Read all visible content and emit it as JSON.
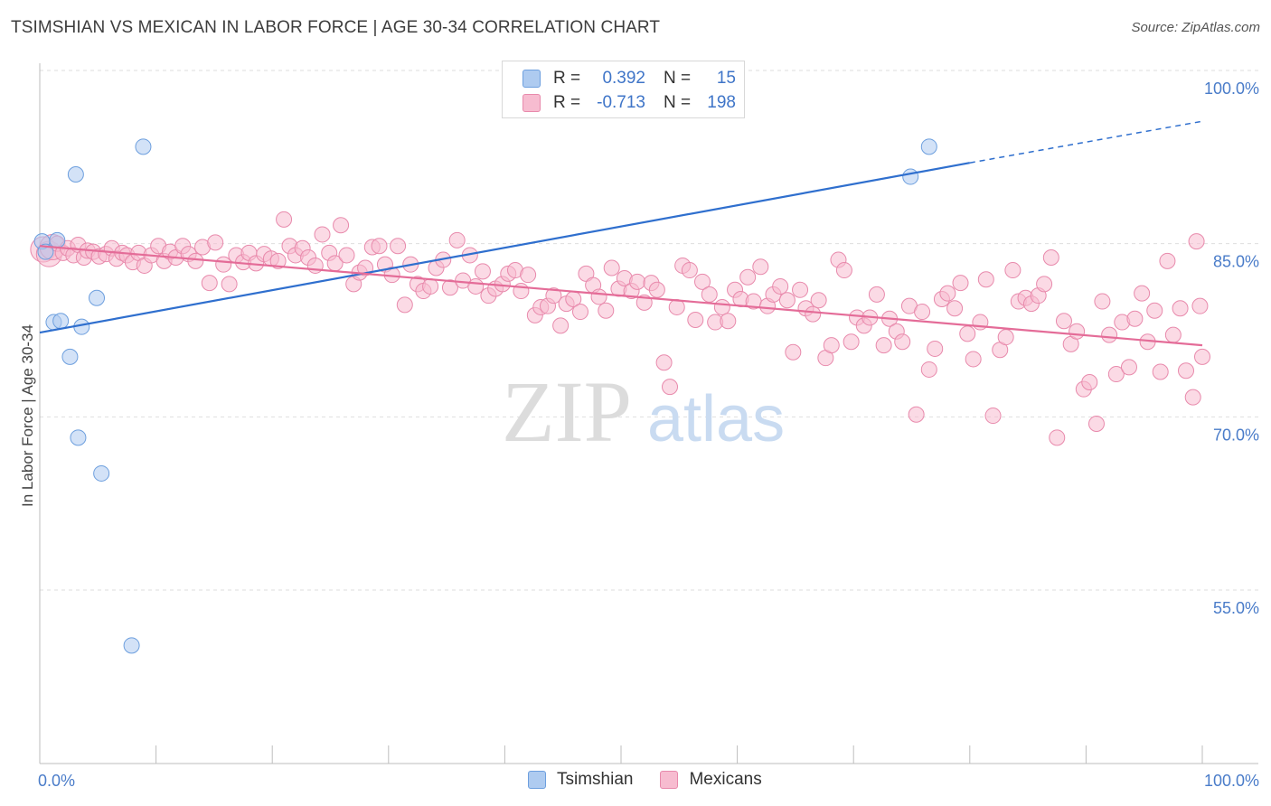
{
  "title": "TSIMSHIAN VS MEXICAN IN LABOR FORCE | AGE 30-34 CORRELATION CHART",
  "source": "Source: ZipAtlas.com",
  "legend": {
    "r_label": "R =",
    "n_label": "N =",
    "rows": [
      {
        "name": "Tsimshian",
        "r": "0.392",
        "n": "15",
        "color": "#aecbf0",
        "stroke": "#6d9fde"
      },
      {
        "name": "Mexicans",
        "r": "-0.713",
        "n": "198",
        "color": "#f7bcd0",
        "stroke": "#e88aac"
      }
    ]
  },
  "watermark": {
    "zip": "ZIP",
    "atlas": "atlas"
  },
  "chart_data": {
    "type": "scatter",
    "ylabel": "In Labor Force | Age 30-34",
    "xlabel": "",
    "xlim": [
      0,
      100
    ],
    "ylim": [
      40,
      102
    ],
    "x_tick_labels": [
      {
        "v": 0,
        "label": "0.0%"
      },
      {
        "v": 100,
        "label": "100.0%"
      }
    ],
    "y_tick_labels": [
      {
        "v": 55,
        "label": "55.0%"
      },
      {
        "v": 70,
        "label": "70.0%"
      },
      {
        "v": 85,
        "label": "85.0%"
      },
      {
        "v": 100,
        "label": "100.0%"
      }
    ],
    "grid": true,
    "series": [
      {
        "name": "Tsimshian",
        "color": "#aecbf0",
        "stroke": "#6d9fde",
        "line_color": "#2f6fce",
        "trend": {
          "x0": 0,
          "y0": 77.3,
          "x1": 80,
          "y1": 92.0,
          "dash_to_x": 100,
          "dash_to_y": 95.6
        },
        "points": [
          [
            0.2,
            85.2
          ],
          [
            0.5,
            84.3
          ],
          [
            1.2,
            78.2
          ],
          [
            1.5,
            85.3
          ],
          [
            1.8,
            78.3
          ],
          [
            2.6,
            75.2
          ],
          [
            3.1,
            91.0
          ],
          [
            3.3,
            68.2
          ],
          [
            3.6,
            77.8
          ],
          [
            4.9,
            80.3
          ],
          [
            5.3,
            65.1
          ],
          [
            7.9,
            50.2
          ],
          [
            8.9,
            93.4
          ],
          [
            74.9,
            90.8
          ],
          [
            76.5,
            93.4
          ]
        ]
      },
      {
        "name": "Mexicans",
        "color": "#f7bcd0",
        "stroke": "#e88aac",
        "line_color": "#e46c98",
        "trend": {
          "x0": 0,
          "y0": 84.8,
          "x1": 100,
          "y1": 76.2
        },
        "points": [
          [
            0.3,
            84.5
          ],
          [
            0.8,
            84.1
          ],
          [
            1.1,
            84.7
          ],
          [
            1.5,
            85.0
          ],
          [
            2.0,
            84.2
          ],
          [
            2.4,
            84.6
          ],
          [
            2.9,
            84.0
          ],
          [
            3.3,
            84.9
          ],
          [
            3.8,
            83.8
          ],
          [
            4.1,
            84.4
          ],
          [
            4.6,
            84.3
          ],
          [
            5.1,
            83.9
          ],
          [
            5.7,
            84.1
          ],
          [
            6.2,
            84.6
          ],
          [
            6.6,
            83.7
          ],
          [
            7.1,
            84.2
          ],
          [
            7.5,
            84.0
          ],
          [
            8.0,
            83.4
          ],
          [
            8.5,
            84.2
          ],
          [
            9.0,
            83.1
          ],
          [
            9.6,
            84.0
          ],
          [
            10.2,
            84.8
          ],
          [
            10.7,
            83.5
          ],
          [
            11.2,
            84.3
          ],
          [
            11.7,
            83.8
          ],
          [
            12.3,
            84.8
          ],
          [
            12.8,
            84.1
          ],
          [
            13.4,
            83.5
          ],
          [
            14.0,
            84.7
          ],
          [
            14.6,
            81.6
          ],
          [
            15.1,
            85.1
          ],
          [
            15.8,
            83.2
          ],
          [
            16.3,
            81.5
          ],
          [
            16.9,
            84.0
          ],
          [
            17.5,
            83.4
          ],
          [
            18.0,
            84.2
          ],
          [
            18.6,
            83.3
          ],
          [
            19.3,
            84.1
          ],
          [
            19.9,
            83.7
          ],
          [
            20.5,
            83.5
          ],
          [
            21.0,
            87.1
          ],
          [
            21.5,
            84.8
          ],
          [
            22.0,
            84.0
          ],
          [
            22.6,
            84.6
          ],
          [
            23.1,
            83.8
          ],
          [
            23.7,
            83.1
          ],
          [
            24.3,
            85.8
          ],
          [
            24.9,
            84.2
          ],
          [
            25.4,
            83.3
          ],
          [
            25.9,
            86.6
          ],
          [
            26.4,
            84.0
          ],
          [
            27.0,
            81.5
          ],
          [
            27.5,
            82.5
          ],
          [
            28.0,
            82.9
          ],
          [
            28.6,
            84.7
          ],
          [
            29.2,
            84.8
          ],
          [
            29.7,
            83.2
          ],
          [
            30.3,
            82.3
          ],
          [
            30.8,
            84.8
          ],
          [
            31.4,
            79.7
          ],
          [
            31.9,
            83.2
          ],
          [
            32.5,
            81.5
          ],
          [
            33.0,
            80.9
          ],
          [
            33.6,
            81.3
          ],
          [
            34.1,
            82.9
          ],
          [
            34.7,
            83.6
          ],
          [
            35.3,
            81.2
          ],
          [
            35.9,
            85.3
          ],
          [
            36.4,
            81.8
          ],
          [
            37.0,
            84.0
          ],
          [
            37.5,
            81.3
          ],
          [
            38.1,
            82.6
          ],
          [
            38.6,
            80.5
          ],
          [
            39.2,
            81.1
          ],
          [
            39.8,
            81.5
          ],
          [
            40.3,
            82.4
          ],
          [
            40.9,
            82.7
          ],
          [
            41.4,
            80.9
          ],
          [
            42.0,
            82.3
          ],
          [
            42.6,
            78.8
          ],
          [
            43.1,
            79.5
          ],
          [
            43.7,
            79.6
          ],
          [
            44.2,
            80.5
          ],
          [
            44.8,
            77.9
          ],
          [
            45.3,
            79.8
          ],
          [
            45.9,
            80.2
          ],
          [
            46.5,
            79.1
          ],
          [
            47.0,
            82.4
          ],
          [
            47.6,
            81.4
          ],
          [
            48.1,
            80.4
          ],
          [
            48.7,
            79.2
          ],
          [
            49.2,
            82.9
          ],
          [
            49.8,
            81.1
          ],
          [
            50.3,
            82.0
          ],
          [
            50.9,
            80.9
          ],
          [
            51.4,
            81.7
          ],
          [
            52.0,
            79.9
          ],
          [
            52.6,
            81.6
          ],
          [
            53.1,
            81.0
          ],
          [
            53.7,
            74.7
          ],
          [
            54.2,
            72.6
          ],
          [
            54.8,
            79.5
          ],
          [
            55.3,
            83.1
          ],
          [
            55.9,
            82.7
          ],
          [
            56.4,
            78.4
          ],
          [
            57.0,
            81.7
          ],
          [
            57.6,
            80.6
          ],
          [
            58.1,
            78.2
          ],
          [
            58.7,
            79.5
          ],
          [
            59.2,
            78.3
          ],
          [
            59.8,
            81.0
          ],
          [
            60.3,
            80.2
          ],
          [
            60.9,
            82.1
          ],
          [
            61.4,
            80.0
          ],
          [
            62.0,
            83.0
          ],
          [
            62.6,
            79.6
          ],
          [
            63.1,
            80.6
          ],
          [
            63.7,
            81.3
          ],
          [
            64.3,
            80.1
          ],
          [
            64.8,
            75.6
          ],
          [
            65.4,
            81.0
          ],
          [
            65.9,
            79.4
          ],
          [
            66.5,
            78.9
          ],
          [
            67.0,
            80.1
          ],
          [
            67.6,
            75.1
          ],
          [
            68.1,
            76.2
          ],
          [
            68.7,
            83.6
          ],
          [
            69.2,
            82.7
          ],
          [
            69.8,
            76.5
          ],
          [
            70.3,
            78.6
          ],
          [
            70.9,
            77.9
          ],
          [
            71.4,
            78.6
          ],
          [
            72.0,
            80.6
          ],
          [
            72.6,
            76.2
          ],
          [
            73.1,
            78.5
          ],
          [
            73.7,
            77.4
          ],
          [
            74.2,
            76.5
          ],
          [
            74.8,
            79.6
          ],
          [
            75.4,
            70.2
          ],
          [
            75.9,
            79.1
          ],
          [
            76.5,
            74.1
          ],
          [
            77.0,
            75.9
          ],
          [
            77.6,
            80.2
          ],
          [
            78.1,
            80.7
          ],
          [
            78.7,
            79.4
          ],
          [
            79.2,
            81.6
          ],
          [
            79.8,
            77.2
          ],
          [
            80.3,
            75.0
          ],
          [
            80.9,
            78.2
          ],
          [
            81.4,
            81.9
          ],
          [
            82.0,
            70.1
          ],
          [
            82.6,
            75.8
          ],
          [
            83.1,
            76.9
          ],
          [
            83.7,
            82.7
          ],
          [
            84.2,
            80.0
          ],
          [
            84.8,
            80.3
          ],
          [
            85.3,
            79.8
          ],
          [
            85.9,
            80.5
          ],
          [
            86.4,
            81.5
          ],
          [
            87.0,
            83.8
          ],
          [
            87.5,
            68.2
          ],
          [
            88.1,
            78.3
          ],
          [
            88.7,
            76.3
          ],
          [
            89.2,
            77.4
          ],
          [
            89.8,
            72.4
          ],
          [
            90.3,
            73.0
          ],
          [
            90.9,
            69.4
          ],
          [
            91.4,
            80.0
          ],
          [
            92.0,
            77.1
          ],
          [
            92.6,
            73.7
          ],
          [
            93.1,
            78.2
          ],
          [
            93.7,
            74.3
          ],
          [
            94.2,
            78.5
          ],
          [
            94.8,
            80.7
          ],
          [
            95.3,
            76.5
          ],
          [
            95.9,
            79.2
          ],
          [
            96.4,
            73.9
          ],
          [
            97.0,
            83.5
          ],
          [
            97.5,
            77.1
          ],
          [
            98.1,
            79.4
          ],
          [
            98.6,
            74.0
          ],
          [
            99.2,
            71.7
          ],
          [
            99.5,
            85.2
          ],
          [
            99.8,
            79.6
          ],
          [
            100.0,
            75.2
          ]
        ]
      }
    ]
  }
}
